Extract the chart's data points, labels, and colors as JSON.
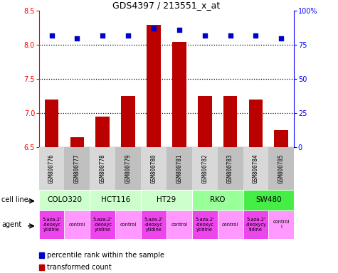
{
  "title": "GDS4397 / 213551_x_at",
  "samples": [
    "GSM800776",
    "GSM800777",
    "GSM800778",
    "GSM800779",
    "GSM800780",
    "GSM800781",
    "GSM800782",
    "GSM800783",
    "GSM800784",
    "GSM800785"
  ],
  "bar_values": [
    7.2,
    6.65,
    6.95,
    7.25,
    8.3,
    8.05,
    7.25,
    7.25,
    7.2,
    6.75
  ],
  "scatter_values": [
    82,
    80,
    82,
    82,
    87,
    86,
    82,
    82,
    82,
    80
  ],
  "ylim_left": [
    6.5,
    8.5
  ],
  "ylim_right": [
    0,
    100
  ],
  "yticks_left": [
    6.5,
    7.0,
    7.5,
    8.0,
    8.5
  ],
  "yticks_right": [
    0,
    25,
    50,
    75,
    100
  ],
  "bar_color": "#bb0000",
  "scatter_color": "#0000cc",
  "cell_lines": [
    {
      "name": "COLO320",
      "start": 0,
      "end": 2,
      "color": "#ccffcc"
    },
    {
      "name": "HCT116",
      "start": 2,
      "end": 4,
      "color": "#ccffcc"
    },
    {
      "name": "HT29",
      "start": 4,
      "end": 6,
      "color": "#ccffcc"
    },
    {
      "name": "RKO",
      "start": 6,
      "end": 8,
      "color": "#99ff99"
    },
    {
      "name": "SW480",
      "start": 8,
      "end": 10,
      "color": "#44ee44"
    }
  ],
  "agents": [
    {
      "name": "5-aza-2'\n-deoxyc\nytidine",
      "color": "#ee44ee",
      "start": 0,
      "end": 1
    },
    {
      "name": "control",
      "color": "#ff99ff",
      "start": 1,
      "end": 2
    },
    {
      "name": "5-aza-2'\n-deoxyc\nytidine",
      "color": "#ee44ee",
      "start": 2,
      "end": 3
    },
    {
      "name": "control",
      "color": "#ff99ff",
      "start": 3,
      "end": 4
    },
    {
      "name": "5-aza-2'\n-deoxyc\nytidine",
      "color": "#ee44ee",
      "start": 4,
      "end": 5
    },
    {
      "name": "control",
      "color": "#ff99ff",
      "start": 5,
      "end": 6
    },
    {
      "name": "5-aza-2'\n-deoxyc\nytidine",
      "color": "#ee44ee",
      "start": 6,
      "end": 7
    },
    {
      "name": "control",
      "color": "#ff99ff",
      "start": 7,
      "end": 8
    },
    {
      "name": "5-aza-2'\n-deoxycy\ntidine",
      "color": "#ee44ee",
      "start": 8,
      "end": 9
    },
    {
      "name": "control\nl",
      "color": "#ff99ff",
      "start": 9,
      "end": 10
    }
  ],
  "sample_shades": [
    "#d8d8d8",
    "#c0c0c0",
    "#d8d8d8",
    "#c0c0c0",
    "#d8d8d8",
    "#c0c0c0",
    "#d8d8d8",
    "#c0c0c0",
    "#d8d8d8",
    "#c0c0c0"
  ],
  "legend_items": [
    {
      "label": "transformed count",
      "color": "#bb0000"
    },
    {
      "label": "percentile rank within the sample",
      "color": "#0000cc"
    }
  ]
}
